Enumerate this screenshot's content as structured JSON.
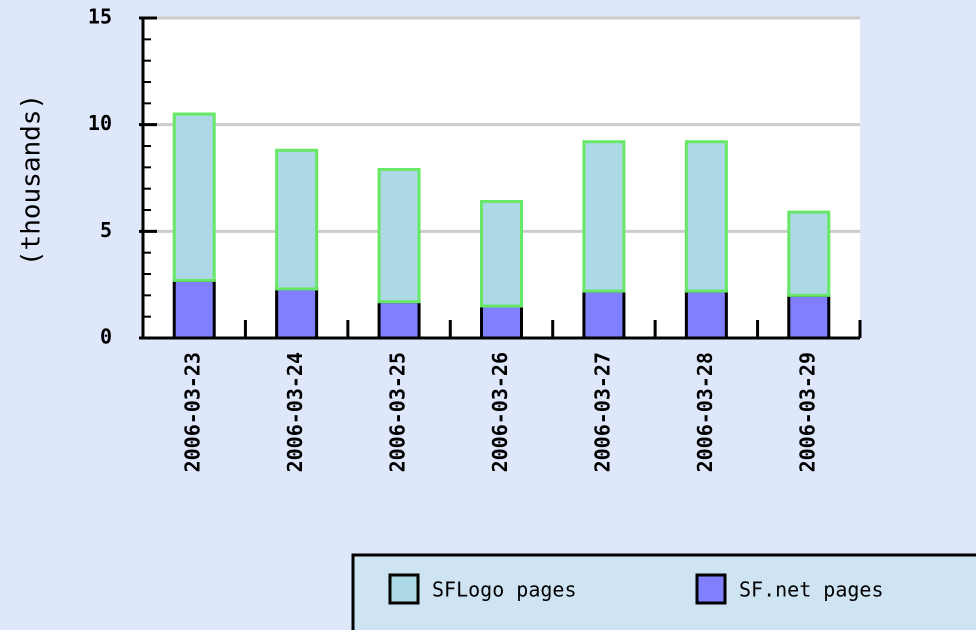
{
  "chart_data": {
    "type": "stacked_bar",
    "y_label": "(thousands)",
    "categories": [
      "2006-03-23",
      "2006-03-24",
      "2006-03-25",
      "2006-03-26",
      "2006-03-27",
      "2006-03-28",
      "2006-03-29"
    ],
    "series": [
      {
        "name": "SF.net pages",
        "color": "#8080ff",
        "values": [
          2.7,
          2.3,
          1.7,
          1.5,
          2.2,
          2.2,
          2.0
        ]
      },
      {
        "name": "SFLogo pages",
        "color": "#add8e6",
        "values": [
          7.8,
          6.5,
          6.2,
          4.9,
          7.0,
          7.0,
          3.9
        ]
      }
    ],
    "ylim": [
      0,
      15
    ],
    "yticks": [
      0,
      5,
      10,
      15
    ],
    "grid": true
  }
}
